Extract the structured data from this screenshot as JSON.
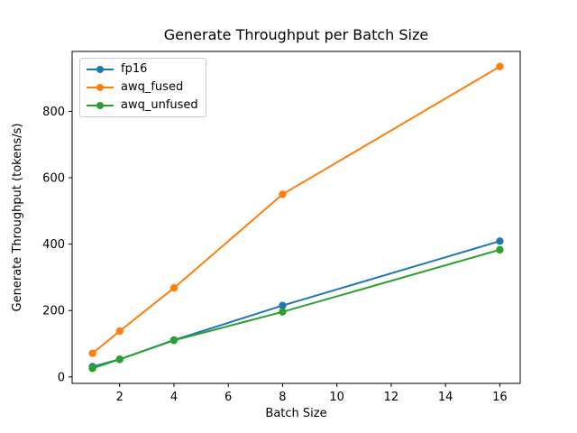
{
  "chart_data": {
    "type": "line",
    "title": "Generate Throughput per Batch Size",
    "xlabel": "Batch Size",
    "ylabel": "Generate Throughput (tokens/s)",
    "x": [
      1,
      2,
      4,
      8,
      16
    ],
    "series": [
      {
        "name": "fp16",
        "color": "#1f77b4",
        "values": [
          31,
          53,
          111,
          215,
          409
        ]
      },
      {
        "name": "awq_fused",
        "color": "#ff7f0e",
        "values": [
          71,
          138,
          268,
          550,
          935
        ]
      },
      {
        "name": "awq_unfused",
        "color": "#2ca02c",
        "values": [
          26,
          53,
          110,
          196,
          383
        ]
      }
    ],
    "xticks": [
      2,
      4,
      6,
      8,
      10,
      12,
      14,
      16
    ],
    "yticks": [
      0,
      200,
      400,
      600,
      800
    ],
    "xlim": [
      0.25,
      16.75
    ],
    "ylim": [
      -19.5,
      980.5
    ],
    "grid": false,
    "legend_position": "upper left",
    "marker": "circle",
    "axis_color": "#000000",
    "background": "#ffffff"
  }
}
